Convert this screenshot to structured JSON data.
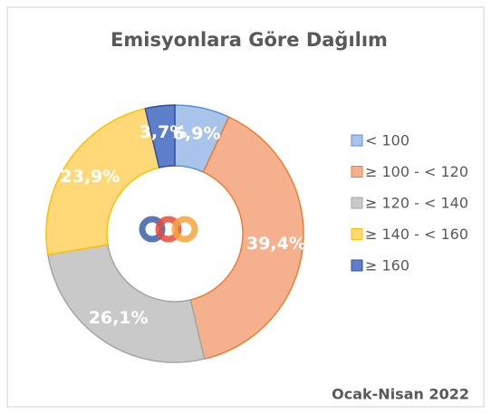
{
  "chart_data": {
    "type": "pie",
    "title": "Emisyonlara Göre Dağılım",
    "categories": [
      "< 100",
      "≥ 100 - < 120",
      "≥ 120 - < 140",
      "≥ 140 - < 160",
      "≥  160"
    ],
    "values": [
      6.9,
      39.4,
      26.1,
      23.9,
      3.7
    ],
    "value_labels": [
      "6,9%",
      "39,4%",
      "26,1%",
      "23,9%",
      "3,7%"
    ],
    "colors": [
      "#a9c4ea",
      "#f5b18e",
      "#c9c9c9",
      "#ffd878",
      "#5d7fc9"
    ],
    "edge_colors": [
      "#5b8fd6",
      "#ed7d31",
      "#a5a5a5",
      "#ffc000",
      "#2f4fa3"
    ],
    "donut": true,
    "legend": "right",
    "annotation": "Ocak-Nisan 2022"
  }
}
